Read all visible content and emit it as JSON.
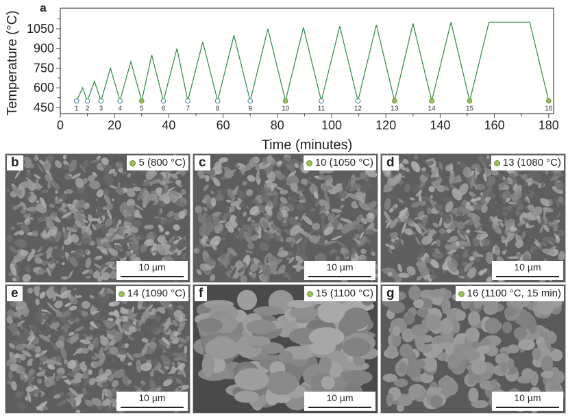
{
  "chart_data": {
    "type": "line",
    "panel_label": "a",
    "xlabel": "Time (minutes)",
    "ylabel": "Temperature (°C)",
    "xlim": [
      0,
      182
    ],
    "ylim": [
      400,
      1200
    ],
    "xticks": [
      0,
      20,
      40,
      60,
      80,
      100,
      120,
      140,
      160,
      180
    ],
    "yticks": [
      450,
      600,
      750,
      900,
      1050
    ],
    "line_color": "#3a8f4e",
    "profile": {
      "x": [
        6,
        8.2,
        10,
        12.6,
        15,
        18.5,
        22,
        26,
        30,
        33.7,
        38,
        43,
        47,
        52.5,
        58,
        64,
        70,
        76.5,
        83,
        89.6,
        96.2,
        103,
        109.7,
        116.5,
        123.2,
        130,
        136.9,
        144,
        150.9,
        158,
        173,
        180
      ],
      "y": [
        500,
        600,
        500,
        650,
        500,
        750,
        500,
        800,
        500,
        850,
        500,
        900,
        500,
        950,
        500,
        1000,
        500,
        1050,
        500,
        1060,
        500,
        1070,
        500,
        1080,
        500,
        1090,
        500,
        1100,
        500,
        1100,
        1100,
        500
      ]
    },
    "sample_points": [
      {
        "label": "1",
        "x": 6,
        "y": 500,
        "filled": false
      },
      {
        "label": "2",
        "x": 10,
        "y": 500,
        "filled": false
      },
      {
        "label": "3",
        "x": 15,
        "y": 500,
        "filled": false
      },
      {
        "label": "4",
        "x": 22,
        "y": 500,
        "filled": false
      },
      {
        "label": "5",
        "x": 30,
        "y": 500,
        "filled": true
      },
      {
        "label": "6",
        "x": 38,
        "y": 500,
        "filled": false
      },
      {
        "label": "7",
        "x": 47,
        "y": 500,
        "filled": false
      },
      {
        "label": "8",
        "x": 58,
        "y": 500,
        "filled": false
      },
      {
        "label": "9",
        "x": 70,
        "y": 500,
        "filled": false
      },
      {
        "label": "10",
        "x": 83,
        "y": 500,
        "filled": true
      },
      {
        "label": "11",
        "x": 96.2,
        "y": 500,
        "filled": false
      },
      {
        "label": "12",
        "x": 109.7,
        "y": 500,
        "filled": false
      },
      {
        "label": "13",
        "x": 123.2,
        "y": 500,
        "filled": true
      },
      {
        "label": "14",
        "x": 136.9,
        "y": 500,
        "filled": true
      },
      {
        "label": "15",
        "x": 150.9,
        "y": 500,
        "filled": true
      },
      {
        "label": "16",
        "x": 180,
        "y": 500,
        "filled": true
      }
    ],
    "filled_color": "#9bc05a",
    "open_color": "#ffffff"
  },
  "panels": [
    {
      "label": "b",
      "tag": "5 (800 °C)",
      "scale": "10 µm",
      "texture": "fine"
    },
    {
      "label": "c",
      "tag": "10 (1050 °C)",
      "scale": "10 µm",
      "texture": "fine"
    },
    {
      "label": "d",
      "tag": "13 (1080 °C)",
      "scale": "10 µm",
      "texture": "fine"
    },
    {
      "label": "e",
      "tag": "14 (1090 °C)",
      "scale": "10 µm",
      "texture": "fine"
    },
    {
      "label": "f",
      "tag": "15 (1100 °C)",
      "scale": "10 µm",
      "texture": "coarse"
    },
    {
      "label": "g",
      "tag": "16 (1100 °C, 15 min)",
      "scale": "10 µm",
      "texture": "sintered"
    }
  ]
}
